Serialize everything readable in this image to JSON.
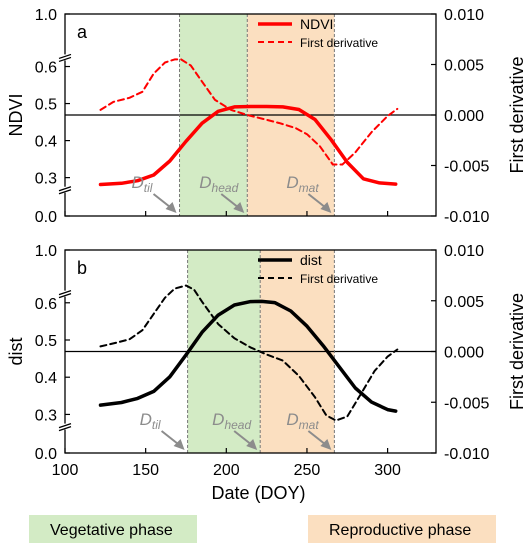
{
  "chart_data": [
    {
      "panel_label": "a",
      "type": "line",
      "xlabel": "",
      "ylabel_left": "NDVI",
      "ylabel_right": "First derivative",
      "xlim": [
        100,
        330
      ],
      "ylim_left": [
        0.0,
        1.0
      ],
      "left_ticks": [
        "1.0",
        "0.6",
        "0.5",
        "0.4",
        "0.3",
        "0.0"
      ],
      "ylim_right": [
        -0.01,
        0.01
      ],
      "right_ticks": [
        "0.010",
        "0.005",
        "0.000",
        "-0.005",
        "-0.010"
      ],
      "legend": [
        "NDVI",
        "First derivative"
      ],
      "legend_position": "top-right",
      "phases": {
        "vegetative": [
          171,
          213
        ],
        "reproductive": [
          213,
          267
        ]
      },
      "markers": [
        {
          "base": "D",
          "sub": "til",
          "x": 171
        },
        {
          "base": "D",
          "sub": "head",
          "x": 213
        },
        {
          "base": "D",
          "sub": "mat",
          "x": 267
        }
      ],
      "series": [
        {
          "name": "NDVI",
          "axis": "left",
          "style": "solid",
          "color": "#ff0000",
          "x": [
            122,
            135,
            145,
            155,
            165,
            175,
            185,
            195,
            205,
            215,
            225,
            235,
            245,
            255,
            265,
            275,
            285,
            295,
            305
          ],
          "y": [
            0.266,
            0.272,
            0.285,
            0.307,
            0.345,
            0.398,
            0.447,
            0.479,
            0.491,
            0.492,
            0.492,
            0.491,
            0.484,
            0.457,
            0.402,
            0.341,
            0.294,
            0.274,
            0.268
          ]
        },
        {
          "name": "First derivative",
          "axis": "right",
          "style": "dashed",
          "color": "#ff0000",
          "x": [
            122,
            130,
            140,
            148,
            155,
            162,
            168,
            172,
            178,
            185,
            193,
            203,
            213,
            223,
            233,
            243,
            250,
            258,
            266,
            272,
            280,
            290,
            300,
            306
          ],
          "y": [
            0.0005,
            0.0013,
            0.0017,
            0.0023,
            0.0041,
            0.0052,
            0.0055,
            0.0055,
            0.0049,
            0.0033,
            0.0015,
            0.0005,
            0.0,
            -0.0004,
            -0.0008,
            -0.0013,
            -0.0019,
            -0.0031,
            -0.0049,
            -0.0049,
            -0.0037,
            -0.0017,
            -0.0001,
            0.0006
          ]
        }
      ]
    },
    {
      "panel_label": "b",
      "type": "line",
      "xlabel": "Date (DOY)",
      "ylabel_left": "dist",
      "ylabel_right": "First derivative",
      "xlim": [
        100,
        330
      ],
      "ylim_left": [
        0.0,
        1.0
      ],
      "left_ticks": [
        "1.0",
        "0.6",
        "0.5",
        "0.4",
        "0.3",
        "0.0"
      ],
      "ylim_right": [
        -0.01,
        0.01
      ],
      "right_ticks": [
        "0.010",
        "0.005",
        "0.000",
        "-0.005",
        "-0.010"
      ],
      "x_ticks": [
        "100",
        "150",
        "200",
        "250",
        "300"
      ],
      "legend": [
        "dist",
        "First derivative"
      ],
      "legend_position": "top-right",
      "phases": {
        "vegetative": [
          176,
          221
        ],
        "reproductive": [
          221,
          267
        ]
      },
      "markers": [
        {
          "base": "D",
          "sub": "til",
          "x": 176
        },
        {
          "base": "D",
          "sub": "head",
          "x": 221
        },
        {
          "base": "D",
          "sub": "mat",
          "x": 267
        }
      ],
      "series": [
        {
          "name": "dist",
          "axis": "left",
          "style": "solid",
          "color": "#000000",
          "x": [
            122,
            135,
            145,
            155,
            165,
            175,
            185,
            195,
            205,
            215,
            222,
            230,
            240,
            250,
            260,
            270,
            280,
            290,
            300,
            305
          ],
          "y": [
            0.325,
            0.332,
            0.343,
            0.362,
            0.401,
            0.46,
            0.521,
            0.567,
            0.594,
            0.606,
            0.607,
            0.601,
            0.578,
            0.537,
            0.485,
            0.428,
            0.371,
            0.333,
            0.313,
            0.309
          ]
        },
        {
          "name": "First derivative",
          "axis": "right",
          "style": "dashed",
          "color": "#000000",
          "x": [
            122,
            130,
            140,
            148,
            155,
            162,
            168,
            175,
            180,
            185,
            195,
            205,
            215,
            225,
            235,
            245,
            255,
            262,
            268,
            275,
            283,
            292,
            300,
            306
          ],
          "y": [
            0.0005,
            0.0008,
            0.0012,
            0.0021,
            0.0037,
            0.0053,
            0.0062,
            0.0065,
            0.0061,
            0.0049,
            0.0027,
            0.0013,
            0.0004,
            -0.0003,
            -0.0009,
            -0.0024,
            -0.0045,
            -0.0063,
            -0.0068,
            -0.0064,
            -0.0043,
            -0.0019,
            -0.0005,
            0.0002
          ]
        }
      ]
    }
  ],
  "phase_legend": {
    "vegetative": {
      "label": "Vegetative phase",
      "color": "#d3ebc5"
    },
    "reproductive": {
      "label": "Reproductive phase",
      "color": "#fbdfc0"
    }
  }
}
